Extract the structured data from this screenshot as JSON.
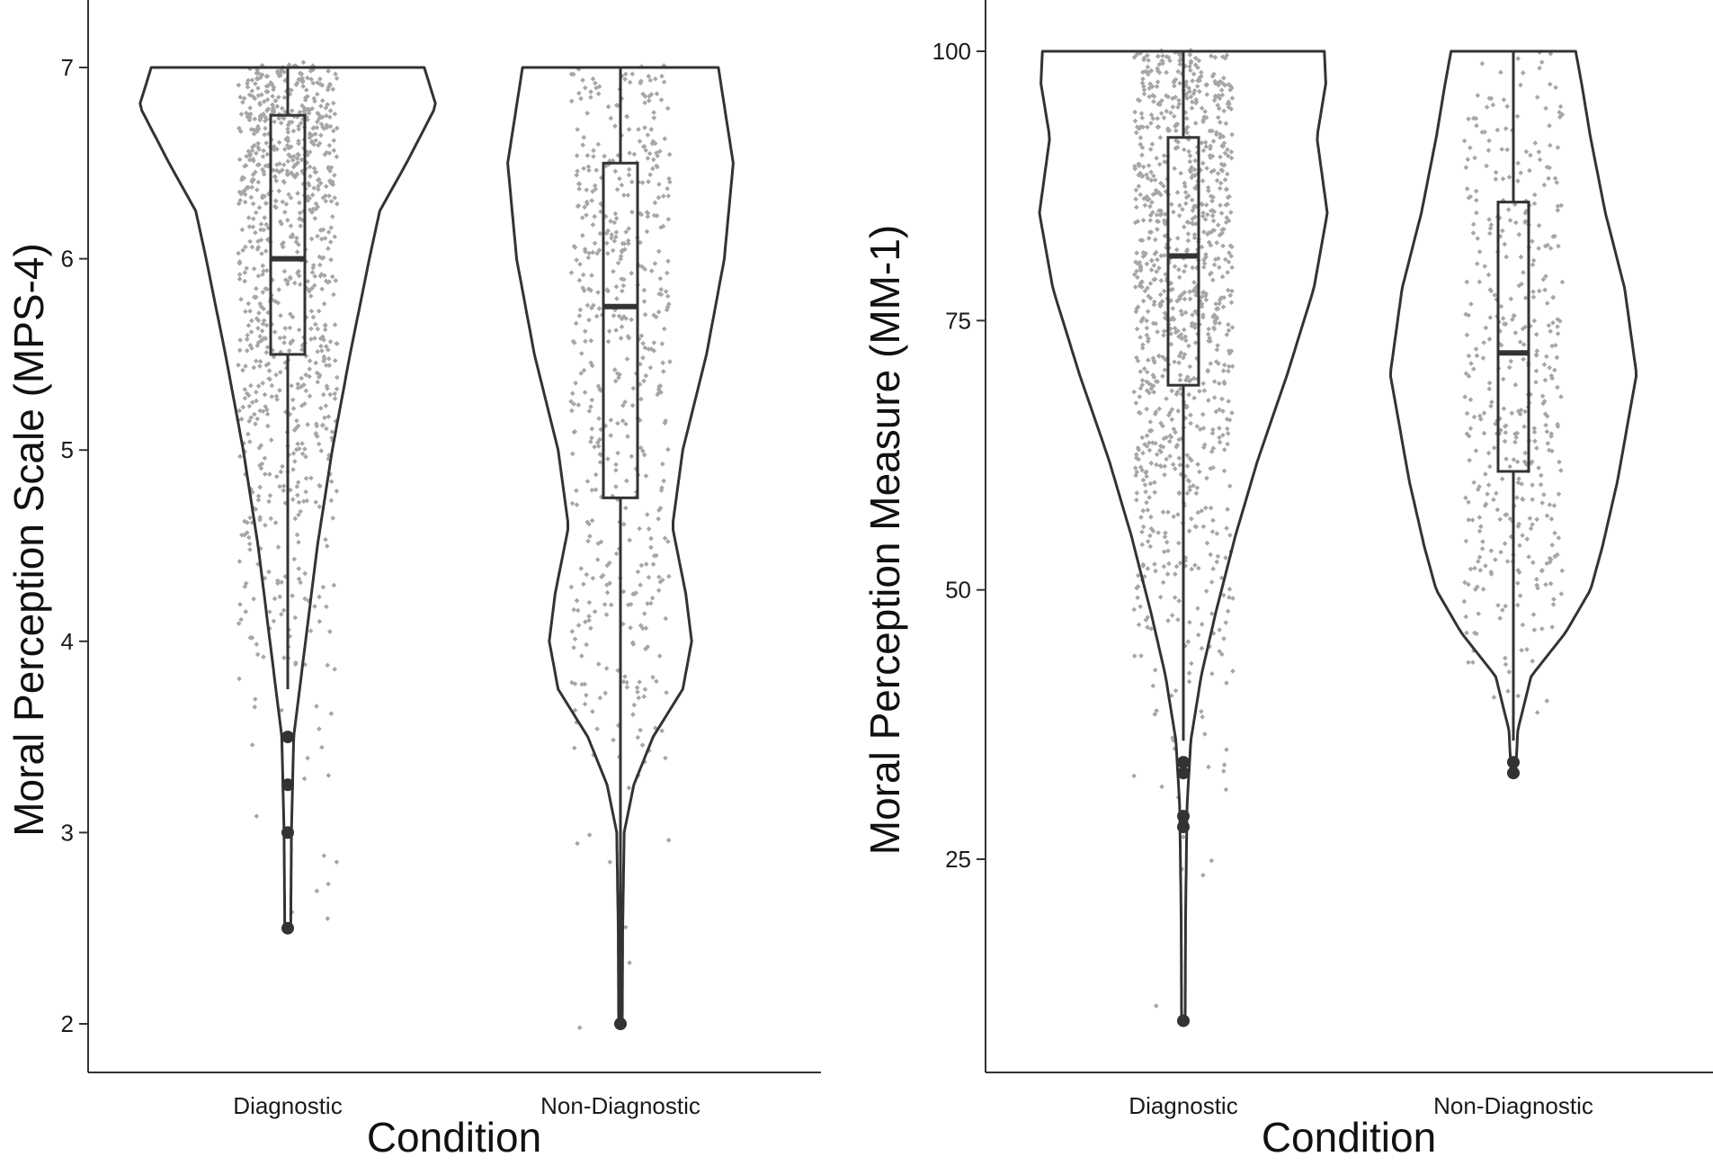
{
  "colors": {
    "outline": "#333333",
    "points": "#a6a6a6",
    "axis": "#333333",
    "background": "#ffffff"
  },
  "chart_data": [
    {
      "type": "violin",
      "title": "",
      "xlabel": "Condition",
      "ylabel": "Moral Perception Scale (MPS-4)",
      "categories": [
        "Diagnostic",
        "Non-Diagnostic"
      ],
      "ylim": [
        1.75,
        7.35
      ],
      "yticks": [
        2,
        3,
        4,
        5,
        6,
        7
      ],
      "grid": false,
      "legend": "none",
      "series": [
        {
          "category": "Diagnostic",
          "box": {
            "q1": 5.5,
            "median": 6.0,
            "q3": 6.75,
            "whisker_low": 3.75,
            "whisker_high": 7.0
          },
          "outliers": [
            3.5,
            3.25,
            3.0,
            2.5
          ],
          "density": [
            [
              2.5,
              0.02
            ],
            [
              3.0,
              0.025
            ],
            [
              3.5,
              0.04
            ],
            [
              3.75,
              0.08
            ],
            [
              4.0,
              0.12
            ],
            [
              4.5,
              0.2
            ],
            [
              5.0,
              0.3
            ],
            [
              5.5,
              0.42
            ],
            [
              6.0,
              0.55
            ],
            [
              6.25,
              0.62
            ],
            [
              6.5,
              0.8
            ],
            [
              6.8,
              1.0
            ],
            [
              7.0,
              0.92
            ]
          ]
        },
        {
          "category": "Non-Diagnostic",
          "box": {
            "q1": 4.75,
            "median": 5.75,
            "q3": 6.5,
            "whisker_low": 2.0,
            "whisker_high": 7.0
          },
          "outliers": [
            2.0
          ],
          "density": [
            [
              2.0,
              0.012
            ],
            [
              2.5,
              0.015
            ],
            [
              3.0,
              0.025
            ],
            [
              3.25,
              0.09
            ],
            [
              3.5,
              0.22
            ],
            [
              3.75,
              0.42
            ],
            [
              4.0,
              0.48
            ],
            [
              4.25,
              0.44
            ],
            [
              4.6,
              0.35
            ],
            [
              5.0,
              0.42
            ],
            [
              5.5,
              0.58
            ],
            [
              6.0,
              0.7
            ],
            [
              6.5,
              0.76
            ],
            [
              7.0,
              0.66
            ]
          ]
        }
      ]
    },
    {
      "type": "violin",
      "title": "",
      "xlabel": "Condition",
      "ylabel": "Moral Perception Measure (MM-1)",
      "categories": [
        "Diagnostic",
        "Non-Diagnostic"
      ],
      "ylim": [
        5,
        105
      ],
      "yticks": [
        25,
        50,
        75,
        100
      ],
      "grid": false,
      "legend": "none",
      "series": [
        {
          "category": "Diagnostic",
          "box": {
            "q1": 69,
            "median": 81,
            "q3": 92,
            "whisker_low": 36,
            "whisker_high": 100
          },
          "outliers": [
            34,
            33,
            29,
            28,
            10
          ],
          "density": [
            [
              10,
              0.012
            ],
            [
              20,
              0.015
            ],
            [
              30,
              0.025
            ],
            [
              36,
              0.05
            ],
            [
              42,
              0.12
            ],
            [
              48,
              0.22
            ],
            [
              55,
              0.35
            ],
            [
              62,
              0.5
            ],
            [
              70,
              0.7
            ],
            [
              78,
              0.88
            ],
            [
              85,
              0.97
            ],
            [
              92,
              0.9
            ],
            [
              97,
              0.96
            ],
            [
              100,
              0.95
            ]
          ]
        },
        {
          "category": "Non-Diagnostic",
          "box": {
            "q1": 61,
            "median": 72,
            "q3": 86,
            "whisker_low": 36,
            "whisker_high": 100
          },
          "outliers": [
            34,
            33
          ],
          "density": [
            [
              33,
              0.015
            ],
            [
              37,
              0.03
            ],
            [
              42,
              0.12
            ],
            [
              46,
              0.35
            ],
            [
              50,
              0.52
            ],
            [
              54,
              0.6
            ],
            [
              60,
              0.7
            ],
            [
              70,
              0.83
            ],
            [
              78,
              0.75
            ],
            [
              85,
              0.62
            ],
            [
              92,
              0.52
            ],
            [
              97,
              0.46
            ],
            [
              100,
              0.42
            ]
          ]
        }
      ]
    }
  ]
}
